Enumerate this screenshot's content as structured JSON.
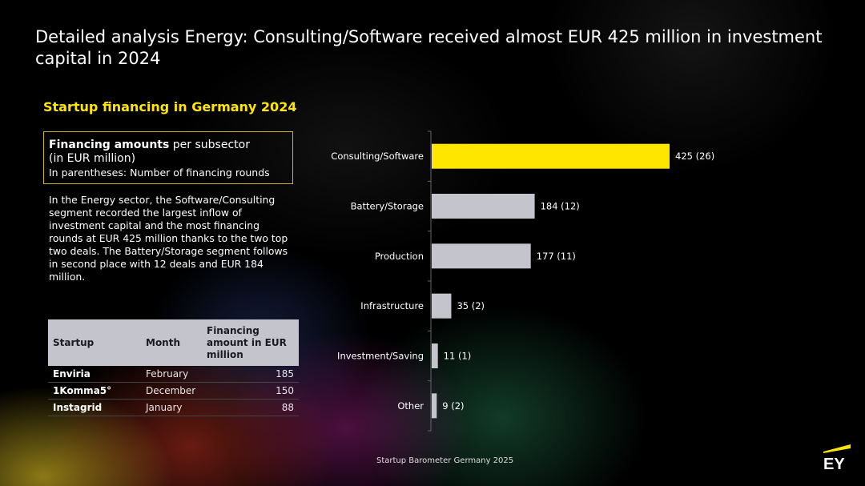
{
  "title": "Detailed analysis Energy: Consulting/Software received almost EUR 425 million in investment capital in 2024",
  "subtitle": "Startup financing in Germany 2024",
  "infobox": {
    "bold": "Financing amounts",
    "rest": " per subsector",
    "line2": "(in EUR million)",
    "line3": "In parentheses: Number of financing rounds"
  },
  "description": "In the Energy sector, the Software/Consulting segment recorded the largest inflow of investment capital and the most financing rounds at EUR 425 million thanks to the two top two deals. The Battery/Storage segment follows in second place with 12 deals and EUR 184 million.",
  "table": {
    "headers": [
      "Startup",
      "Month",
      "Financing amount in EUR million"
    ],
    "rows": [
      {
        "startup": "Enviria",
        "month": "February",
        "amount": "185"
      },
      {
        "startup": "1Komma5°",
        "month": "December",
        "amount": "150"
      },
      {
        "startup": "Instagrid",
        "month": "January",
        "amount": "88"
      }
    ]
  },
  "chart_data": {
    "type": "bar",
    "orientation": "horizontal",
    "categories": [
      "Consulting/Software",
      "Battery/Storage",
      "Production",
      "Infrastructure",
      "Investment/Saving",
      "Other"
    ],
    "values": [
      425,
      184,
      177,
      35,
      11,
      9
    ],
    "rounds": [
      26,
      12,
      11,
      2,
      1,
      2
    ],
    "labels": [
      "425 (26)",
      "184 (12)",
      "177 (11)",
      "35 (2)",
      "11 (1)",
      "9 (2)"
    ],
    "highlight_color": "#ffe600",
    "bar_color": "#c4c4cd",
    "xlim": [
      0,
      425
    ]
  },
  "footer": "Startup Barometer Germany 2025",
  "logo_text": "EY",
  "colors": {
    "accent": "#ffe600",
    "bar": "#c4c4cd"
  }
}
